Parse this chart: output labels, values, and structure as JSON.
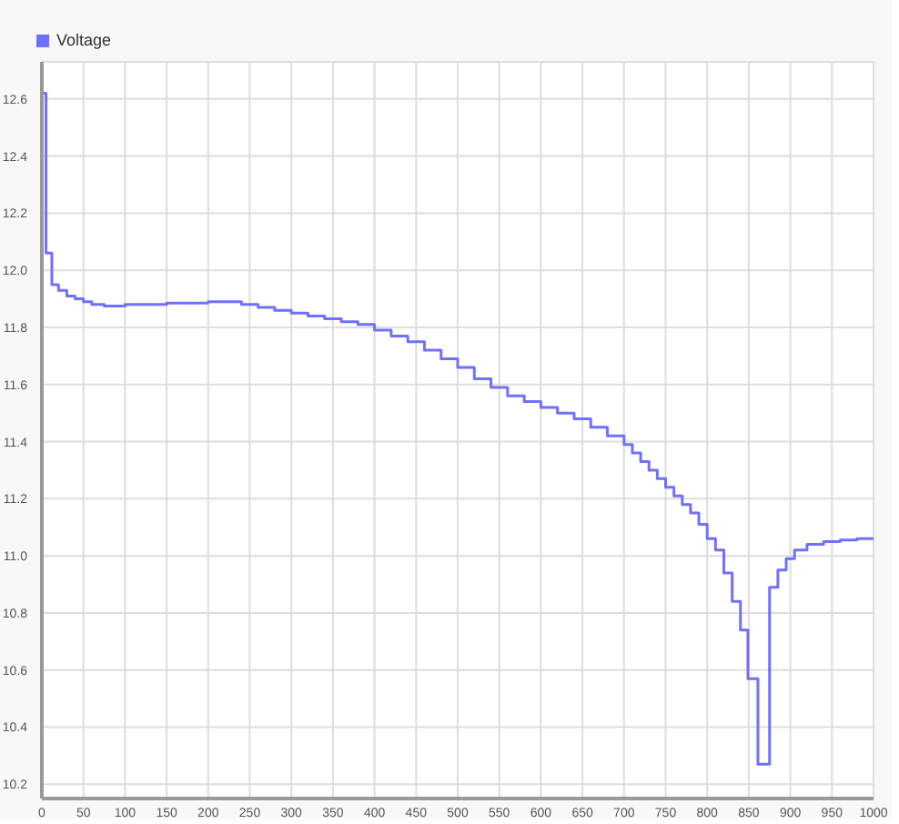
{
  "chart_data": {
    "type": "step",
    "x": [
      0,
      5,
      12,
      20,
      30,
      40,
      50,
      60,
      75,
      100,
      150,
      200,
      225,
      240,
      260,
      280,
      300,
      320,
      340,
      360,
      380,
      400,
      420,
      440,
      460,
      480,
      500,
      520,
      540,
      560,
      580,
      600,
      620,
      640,
      660,
      680,
      700,
      710,
      720,
      730,
      740,
      750,
      760,
      770,
      780,
      790,
      800,
      810,
      820,
      830,
      840,
      849,
      861,
      875,
      885,
      895,
      905,
      920,
      940,
      960,
      980,
      1000
    ],
    "series": [
      {
        "name": "Voltage",
        "color": "#7070ff",
        "values": [
          12.62,
          12.06,
          11.95,
          11.93,
          11.91,
          11.9,
          11.89,
          11.88,
          11.875,
          11.88,
          11.885,
          11.89,
          11.89,
          11.88,
          11.87,
          11.86,
          11.85,
          11.84,
          11.83,
          11.82,
          11.81,
          11.79,
          11.77,
          11.75,
          11.72,
          11.69,
          11.66,
          11.62,
          11.59,
          11.56,
          11.54,
          11.52,
          11.5,
          11.48,
          11.45,
          11.42,
          11.39,
          11.36,
          11.33,
          11.3,
          11.27,
          11.24,
          11.21,
          11.18,
          11.15,
          11.11,
          11.06,
          11.02,
          10.94,
          10.84,
          10.74,
          10.57,
          10.27,
          10.89,
          10.95,
          10.99,
          11.02,
          11.04,
          11.05,
          11.055,
          11.06,
          11.06
        ]
      }
    ],
    "xlim": [
      0,
      1000
    ],
    "xticks": [
      0,
      50,
      100,
      150,
      200,
      250,
      300,
      350,
      400,
      450,
      500,
      550,
      600,
      650,
      700,
      750,
      800,
      850,
      900,
      950,
      1000
    ],
    "ylim": [
      10.15,
      12.73
    ],
    "yticks": [
      10.2,
      10.4,
      10.6,
      10.8,
      {
        "value": 11,
        "label": "11.0"
      },
      11.2,
      11.4,
      11.6,
      11.8,
      {
        "value": 12,
        "label": "12.0"
      },
      12.2,
      12.4,
      12.6
    ],
    "grid": true,
    "legend": "top left",
    "marker": "none",
    "line_style": "solid"
  }
}
